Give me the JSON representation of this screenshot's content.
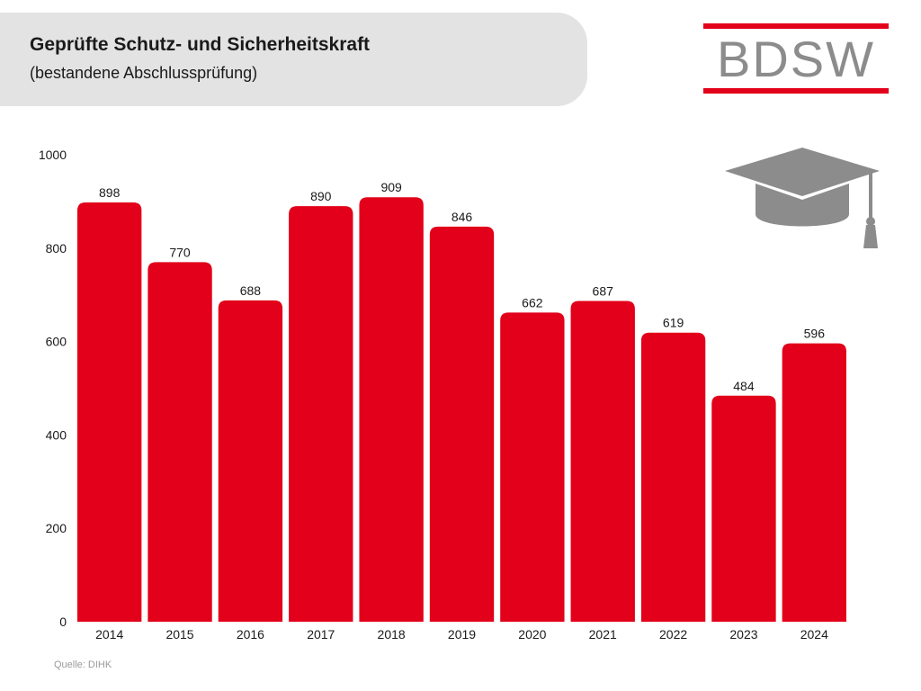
{
  "header": {
    "title": "Geprüfte Schutz- und Sicherheitskraft",
    "subtitle": "(bestandene Abschlussprüfung)"
  },
  "logo": {
    "text": "BDSW"
  },
  "icons": {
    "logo": "bdsw-logo",
    "graduation": "graduation-cap-icon"
  },
  "colors": {
    "bar": "#e2001a",
    "logo_text": "#8c8c8c",
    "logo_bars": "#e2001a",
    "cap": "#8c8c8c"
  },
  "source": "Quelle: DIHK",
  "chart_data": {
    "type": "bar",
    "title": "Geprüfte Schutz- und Sicherheitskraft",
    "subtitle": "(bestandene Abschlussprüfung)",
    "categories": [
      "2014",
      "2015",
      "2016",
      "2017",
      "2018",
      "2019",
      "2020",
      "2021",
      "2022",
      "2023",
      "2024"
    ],
    "values": [
      898,
      770,
      688,
      890,
      909,
      846,
      662,
      687,
      619,
      484,
      596
    ],
    "xlabel": "",
    "ylabel": "",
    "ylim": [
      0,
      1000
    ],
    "yticks": [
      0,
      200,
      400,
      600,
      800,
      1000
    ],
    "grid": false,
    "data_labels": true,
    "legend": "none"
  }
}
